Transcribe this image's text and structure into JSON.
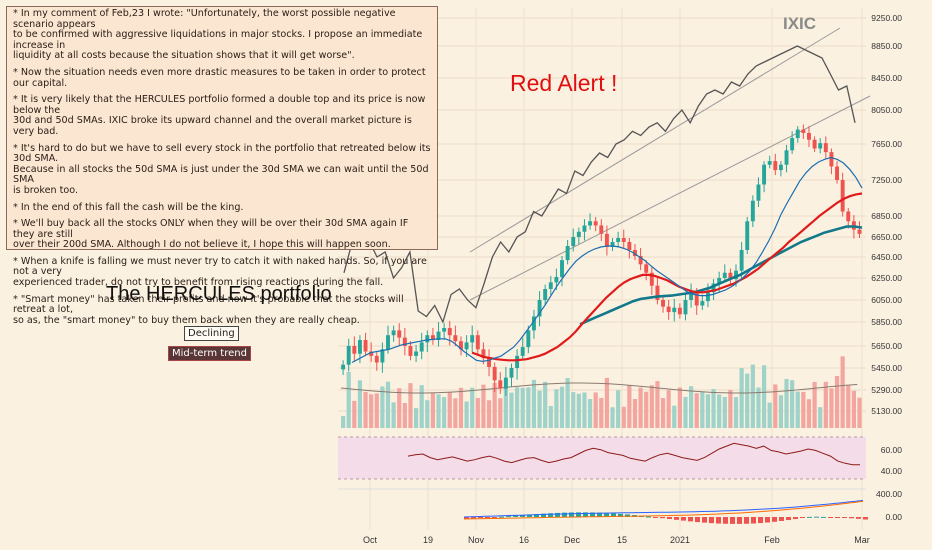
{
  "notes": [
    "* In my comment of Feb,23 I wrote: \"Unfortunately, the worst possible negative scenario appears\n   to be confirmed with aggressive liquidations in major stocks. I propose an immediate increase in\n   liquidity at all costs because the situation shows that it will get worse\".",
    "* Now the situation needs even more drastic measures to be taken in order to protect our capital.",
    "* It is very likely that the HERCULES portfolio formed a double top and its price is now below the\n   30d and 50d SMAs. IXIC broke its upward channel and the overall market picture is very bad.",
    "* It's hard to do but we have to sell every stock in the portfolio that retreated below its 30d SMA.\n   Because in all stocks the 50d SMA is just under the 30d SMA we can wait until the 50d SMA\n   is broken too.",
    "* In the end of this fall the cash will be the king.",
    "* We'll buy back all the stocks ONLY when they will be over their 30d SMA again IF they are still\n   over their 200d SMA. Although I do not believe it, I hope this will happen soon.",
    "* When a knife is falling we must never try to catch it with naked hands. So, if you are not a very\n   experienced trader, do not try to benefit from rising reactions during the fall.",
    "* \"Smart money\" has taken their profits and now it's probable that the stocks will retreat a lot,\n   so as, the \"smart money\" to buy them back when they are really cheap."
  ],
  "labels": {
    "title": "The HERCULES portfolio",
    "alert": "Red Alert !",
    "ticker": "IXIC",
    "declining": "Declining",
    "midterm": "Mid-term trend"
  },
  "colors": {
    "bull": "#26a69a",
    "bear": "#ef5350",
    "sma30": "#1a6fb3",
    "sma50": "#e01b1b",
    "sma200": "#12798a",
    "ixic": "#555555",
    "alert": "#e01010"
  },
  "chart_data": [
    {
      "type": "candlestick",
      "title": "The HERCULES portfolio",
      "x_ticks": [
        "Oct",
        "19",
        "Nov",
        "16",
        "Dec",
        "15",
        "2021",
        "Feb",
        "Mar"
      ],
      "y_ticks": [
        9250,
        8850,
        8450,
        8050,
        7650,
        7250,
        6850,
        6650,
        6450,
        6250,
        6050,
        5850,
        5650,
        5450,
        5290,
        5130
      ],
      "closes": [
        5480,
        5650,
        5580,
        5700,
        5600,
        5560,
        5500,
        5620,
        5740,
        5780,
        5720,
        5650,
        5560,
        5600,
        5680,
        5740,
        5700,
        5770,
        5800,
        5740,
        5690,
        5620,
        5680,
        5740,
        5620,
        5540,
        5460,
        5360,
        5300,
        5380,
        5450,
        5560,
        5640,
        5780,
        5900,
        6050,
        6150,
        6210,
        6260,
        6420,
        6560,
        6650,
        6700,
        6760,
        6800,
        6760,
        6680,
        6550,
        6600,
        6640,
        6600,
        6520,
        6460,
        6380,
        6300,
        6180,
        6050,
        5990,
        5940,
        5980,
        5920,
        6050,
        6120,
        6000,
        6040,
        6120,
        6200,
        6250,
        6300,
        6240,
        6320,
        6520,
        6800,
        7020,
        7200,
        7420,
        7460,
        7360,
        7420,
        7580,
        7720,
        7820,
        7780,
        7700,
        7600,
        7660,
        7560,
        7400,
        7250,
        6900,
        6800,
        6720,
        6680
      ],
      "sma30": [
        5500,
        5530,
        5560,
        5590,
        5600,
        5610,
        5620,
        5640,
        5660,
        5670,
        5680,
        5690,
        5700,
        5705,
        5710,
        5710,
        5690,
        5650,
        5600,
        5560,
        5520,
        5510,
        5520,
        5540,
        5560,
        5600,
        5640,
        5700,
        5770,
        5840,
        5920,
        6000,
        6090,
        6180,
        6260,
        6340,
        6410,
        6460,
        6500,
        6530,
        6550,
        6560,
        6560,
        6550,
        6530,
        6500,
        6460,
        6420,
        6370,
        6320,
        6280,
        6240,
        6200,
        6160,
        6120,
        6100,
        6090,
        6090,
        6100,
        6120,
        6140,
        6170,
        6210,
        6260,
        6320,
        6400,
        6500,
        6610,
        6730,
        6870,
        7000,
        7120,
        7240,
        7330,
        7400,
        7450,
        7480,
        7500,
        7480,
        7440,
        7370,
        7280,
        7160
      ],
      "sma50": [
        5590,
        5570,
        5550,
        5540,
        5530,
        5525,
        5520,
        5520,
        5525,
        5530,
        5545,
        5560,
        5580,
        5610,
        5640,
        5680,
        5720,
        5770,
        5830,
        5890,
        5950,
        6010,
        6070,
        6120,
        6170,
        6210,
        6240,
        6260,
        6280,
        6280,
        6270,
        6250,
        6230,
        6200,
        6170,
        6150,
        6130,
        6120,
        6120,
        6130,
        6140,
        6160,
        6180,
        6200,
        6230,
        6260,
        6300,
        6340,
        6390,
        6440,
        6490,
        6540,
        6600,
        6650,
        6700,
        6750,
        6800,
        6850,
        6900,
        6950,
        7000,
        7040,
        7070,
        7090,
        7100
      ],
      "sma200": [
        5830,
        5860,
        5890,
        5920,
        5950,
        5980,
        6010,
        6040,
        6060,
        6070,
        6080,
        6085,
        6090,
        6100,
        6110,
        6120,
        6140,
        6160,
        6190,
        6220,
        6250,
        6280,
        6320,
        6360,
        6400,
        6440,
        6480,
        6520,
        6560,
        6600,
        6630,
        6660,
        6690,
        6710,
        6730,
        6750,
        6750,
        6740
      ],
      "rsi": [
        52,
        54,
        55,
        50,
        47,
        49,
        51,
        48,
        45,
        47,
        50,
        52,
        49,
        45,
        43,
        46,
        49,
        50,
        46,
        43,
        45,
        48,
        50,
        55,
        60,
        63,
        61,
        57,
        55,
        53,
        49,
        47,
        45,
        50,
        54,
        56,
        53,
        50,
        48,
        46,
        50,
        56,
        62,
        66,
        70,
        68,
        66,
        63,
        66,
        60,
        58,
        55,
        57,
        59,
        62,
        60,
        56,
        52,
        45,
        42,
        40,
        40
      ],
      "macd_levels": [
        400,
        0
      ],
      "rsi_levels": [
        60,
        40
      ]
    },
    {
      "type": "line",
      "name": "IXIC",
      "y_ticks": [
        9250,
        8850,
        8450,
        8050,
        7650,
        7250,
        6850
      ],
      "values": [
        6300,
        6600,
        6700,
        6620,
        6450,
        6500,
        6250,
        6350,
        6500,
        5950,
        5900,
        6000,
        5850,
        6100,
        6150,
        6050,
        5980,
        6200,
        6450,
        6600,
        6500,
        6650,
        6700,
        6900,
        6850,
        7000,
        7150,
        7100,
        7350,
        7300,
        7450,
        7550,
        7500,
        7650,
        7700,
        7800,
        7750,
        7850,
        7900,
        7800,
        7950,
        8050,
        7900,
        8100,
        8250,
        8300,
        8250,
        8400,
        8350,
        8500,
        8600,
        8650,
        8700,
        8750,
        8800,
        8850,
        8800,
        8750,
        8700,
        8500,
        8300,
        8350,
        7900
      ]
    }
  ]
}
